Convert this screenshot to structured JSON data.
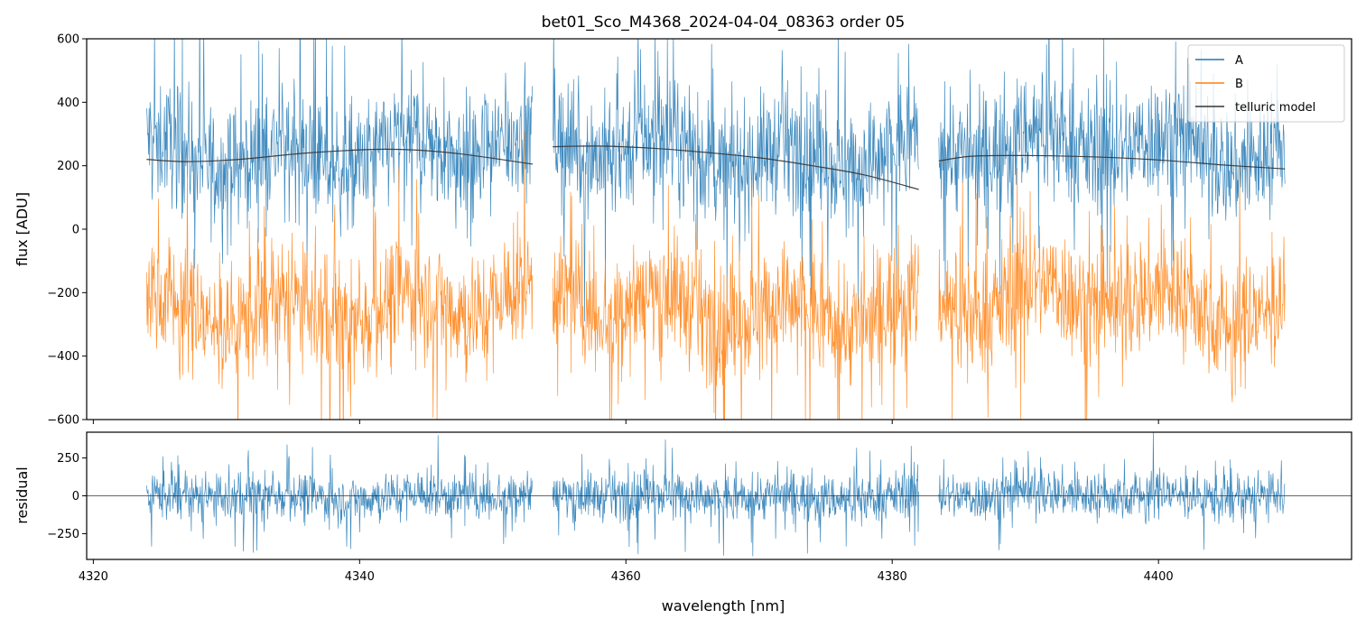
{
  "chart_data": [
    {
      "type": "line",
      "panel": "main",
      "title": "bet01_Sco_M4368_2024-04-04_08363  order 05",
      "xlabel": "",
      "ylabel": "flux [ADU]",
      "xlim": [
        4319.5,
        4414.5
      ],
      "ylim": [
        -600,
        600
      ],
      "yticks": [
        -600,
        -400,
        -200,
        0,
        200,
        400,
        600
      ],
      "ytick_labels": [
        "−600",
        "−400",
        "−200",
        "0",
        "200",
        "400",
        "600"
      ],
      "segments": [
        [
          4324.0,
          4353.0
        ],
        [
          4354.5,
          4382.0
        ],
        [
          4383.5,
          4409.5
        ]
      ],
      "series": [
        {
          "name": "A",
          "color": "#1f77b4",
          "baseline": 250,
          "noise_amplitude": 170,
          "note": "noisy spectrum, mostly 100–500 ADU"
        },
        {
          "name": "B",
          "color": "#ff7f0e",
          "baseline": -240,
          "noise_amplitude": 170,
          "note": "noisy spectrum, mostly -500–50 ADU"
        },
        {
          "name": "telluric model",
          "color": "#333333",
          "segments": [
            {
              "x": [
                4324.0,
                4327.0,
                4331.0,
                4336.0,
                4342.0,
                4347.0,
                4353.0
              ],
              "y": [
                220,
                213,
                220,
                240,
                252,
                240,
                205
              ]
            },
            {
              "x": [
                4354.5,
                4358.0,
                4362.0,
                4366.0,
                4370.0,
                4374.0,
                4378.0,
                4382.0
              ],
              "y": [
                260,
                262,
                255,
                242,
                225,
                200,
                170,
                125
              ]
            },
            {
              "x": [
                4383.5,
                4386.0,
                4390.0,
                4395.0,
                4400.0,
                4405.0,
                4409.5
              ],
              "y": [
                215,
                230,
                232,
                228,
                218,
                202,
                190
              ]
            }
          ]
        }
      ],
      "legend": {
        "position": "top-right",
        "entries": [
          "A",
          "B",
          "telluric model"
        ]
      }
    },
    {
      "type": "line",
      "panel": "residual",
      "xlabel": "wavelength [nm]",
      "ylabel": "residual",
      "xlim": [
        4319.5,
        4414.5
      ],
      "ylim": [
        -420,
        420
      ],
      "xticks": [
        4320,
        4340,
        4360,
        4380,
        4400
      ],
      "xtick_labels": [
        "4320",
        "4340",
        "4360",
        "4380",
        "4400"
      ],
      "yticks": [
        -250,
        0,
        250
      ],
      "ytick_labels": [
        "−250",
        "0",
        "250"
      ],
      "segments": [
        [
          4324.0,
          4353.0
        ],
        [
          4354.5,
          4382.0
        ],
        [
          4383.5,
          4409.5
        ]
      ],
      "series": [
        {
          "name": "residual",
          "color": "#1f77b4",
          "baseline": 0,
          "noise_amplitude": 140
        }
      ],
      "zero_line": 0
    }
  ]
}
